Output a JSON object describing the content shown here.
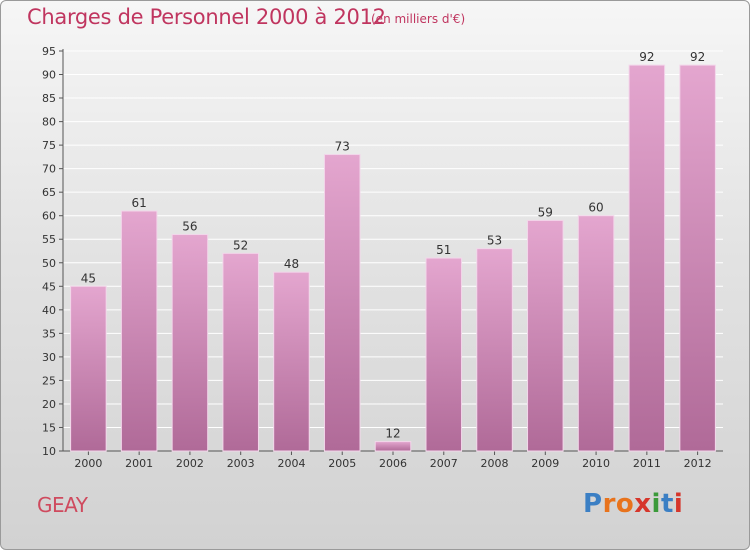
{
  "header": {
    "title": "Charges de Personnel 2000 à 2012",
    "unit_note": "(en milliers d'€)"
  },
  "footer": {
    "commune": "GEAY",
    "logo_text": "Proxiti",
    "logo_colors": [
      "#3b7fc4",
      "#e8731c",
      "#e8731c",
      "#d6362b",
      "#3b9a3a",
      "#3b7fc4",
      "#d6362b"
    ]
  },
  "colors": {
    "bar_top": "#e4a6cf",
    "bar_bottom": "#b06a98",
    "title": "#c0355f"
  },
  "chart_data": {
    "type": "bar",
    "title": "Charges de Personnel 2000 à 2012",
    "subtitle": "(en milliers d'€)",
    "categories": [
      "2000",
      "2001",
      "2002",
      "2003",
      "2004",
      "2005",
      "2006",
      "2007",
      "2008",
      "2009",
      "2010",
      "2011",
      "2012"
    ],
    "values": [
      45,
      61,
      56,
      52,
      48,
      73,
      12,
      51,
      53,
      59,
      60,
      92,
      92
    ],
    "ylim": [
      10,
      95
    ],
    "yticks": [
      10,
      15,
      20,
      25,
      30,
      35,
      40,
      45,
      50,
      55,
      60,
      65,
      70,
      75,
      80,
      85,
      90,
      95
    ],
    "grid": true,
    "xlabel": "",
    "ylabel": ""
  }
}
